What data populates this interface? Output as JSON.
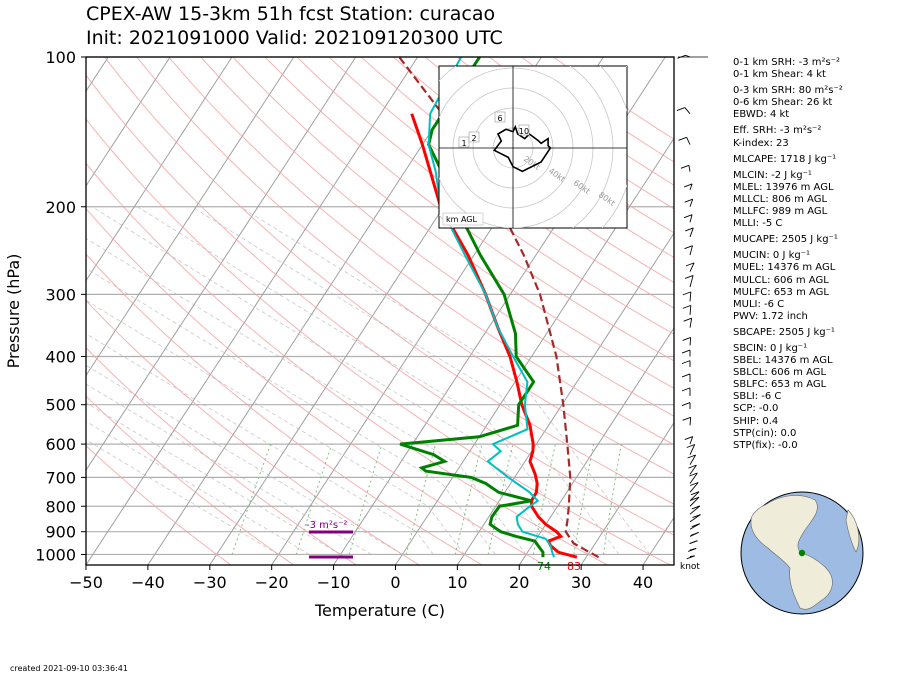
{
  "header": {
    "title_line1": "CPEX-AW 15-3km  51h fcst  Station: curacao",
    "title_line2": "Init: 2021091000  Valid: 202109120300 UTC"
  },
  "footer": {
    "created": "created 2021-09-10 03:36:41"
  },
  "colors": {
    "temperature": "#ff0000",
    "dewpoint": "#008000",
    "wetbulb": "#00bfbf",
    "parcel": "#a52a2a",
    "srh_marker": "#800080",
    "dry_adiabat": "#f4a0a0",
    "isotherm": "#a0a0a0",
    "mixing_ratio": "#80c080"
  },
  "stats": [
    {
      "label": "0-1 km SRH: -3 m²s⁻²"
    },
    {
      "label": "0-1 km Shear: 4 kt"
    },
    {
      "label": "0-3 km SRH: 80 m²s⁻²"
    },
    {
      "label": "0-6 km Shear: 26 kt"
    },
    {
      "label": "EBWD: 4 kt"
    },
    {
      "label": "Eff. SRH: -3 m²s⁻²"
    },
    {
      "label": "K-index: 23"
    },
    {
      "label": "MLCAPE: 1718 J kg⁻¹"
    },
    {
      "label": "MLCIN: -2 J kg⁻¹"
    },
    {
      "label": "MLEL: 13976 m AGL"
    },
    {
      "label": "MLLCL: 806 m AGL"
    },
    {
      "label": "MLLFC: 989 m AGL"
    },
    {
      "label": "MLLI: -5 C"
    },
    {
      "label": "MUCAPE: 2505 J kg⁻¹"
    },
    {
      "label": "MUCIN: 0 J kg⁻¹"
    },
    {
      "label": "MUEL: 14376 m AGL"
    },
    {
      "label": "MULCL: 606 m AGL"
    },
    {
      "label": "MULFC: 653 m AGL"
    },
    {
      "label": "MULI: -6 C"
    },
    {
      "label": "PWV: 1.72 inch"
    },
    {
      "label": "SBCAPE: 2505 J kg⁻¹"
    },
    {
      "label": "SBCIN: 0 J kg⁻¹"
    },
    {
      "label": "SBEL: 14376 m AGL"
    },
    {
      "label": "SBLCL: 606 m AGL"
    },
    {
      "label": "SBLFC: 653 m AGL"
    },
    {
      "label": "SBLI: -6 C"
    },
    {
      "label": "SCP: -0.0"
    },
    {
      "label": "SHIP: 0.4"
    },
    {
      "label": "STP(cin): 0.0"
    },
    {
      "label": "STP(fix): -0.0"
    }
  ],
  "chart_data": {
    "type": "line",
    "xlabel": "Temperature (C)",
    "ylabel": "Pressure (hPa)",
    "xlim": [
      -50,
      45
    ],
    "ylim": [
      1050,
      100
    ],
    "y_scale": "log",
    "x_ticks": [
      -50,
      -40,
      -30,
      -20,
      -10,
      0,
      10,
      20,
      30,
      40
    ],
    "y_ticks": [
      100,
      200,
      300,
      400,
      500,
      600,
      700,
      800,
      900,
      1000
    ],
    "surface_temperature_label": "83",
    "surface_dewpoint_label": "74",
    "srh_annotation": "-3 m²s⁻²",
    "wind_units_label": "knot",
    "series": [
      {
        "key": "temperature",
        "points": [
          [
            1013,
            28.5
          ],
          [
            990,
            25
          ],
          [
            960,
            23
          ],
          [
            940,
            22.2
          ],
          [
            920,
            23.7
          ],
          [
            900,
            22.5
          ],
          [
            870,
            20
          ],
          [
            840,
            18
          ],
          [
            800,
            15.8
          ],
          [
            780,
            15.2
          ],
          [
            750,
            15.1
          ],
          [
            720,
            14.3
          ],
          [
            690,
            13
          ],
          [
            650,
            10.8
          ],
          [
            620,
            10.2
          ],
          [
            600,
            9.5
          ],
          [
            550,
            7
          ],
          [
            500,
            3.5
          ],
          [
            450,
            0.3
          ],
          [
            400,
            -3.5
          ],
          [
            350,
            -8.5
          ],
          [
            300,
            -14
          ],
          [
            250,
            -21
          ],
          [
            200,
            -30.5
          ],
          [
            150,
            -40
          ],
          [
            130,
            -45
          ]
        ]
      },
      {
        "key": "dewpoint",
        "points": [
          [
            1013,
            23
          ],
          [
            990,
            22.5
          ],
          [
            960,
            21
          ],
          [
            940,
            20
          ],
          [
            920,
            16.5
          ],
          [
            900,
            13.5
          ],
          [
            870,
            11
          ],
          [
            840,
            10.5
          ],
          [
            800,
            10.6
          ],
          [
            780,
            15.2
          ],
          [
            750,
            9
          ],
          [
            720,
            6
          ],
          [
            700,
            3
          ],
          [
            680,
            -5
          ],
          [
            670,
            -6
          ],
          [
            650,
            -3
          ],
          [
            630,
            -5.5
          ],
          [
            600,
            -12
          ],
          [
            580,
            0
          ],
          [
            550,
            5
          ],
          [
            500,
            3
          ],
          [
            450,
            3
          ],
          [
            400,
            -2.5
          ],
          [
            360,
            -5
          ],
          [
            300,
            -11
          ],
          [
            250,
            -19
          ],
          [
            200,
            -28
          ],
          [
            170,
            -34
          ],
          [
            150,
            -39
          ],
          [
            140,
            -40
          ],
          [
            130,
            -40
          ],
          [
            100,
            -40
          ]
        ]
      },
      {
        "key": "wetbulb",
        "points": [
          [
            1013,
            24.8
          ],
          [
            990,
            24
          ],
          [
            960,
            23
          ],
          [
            930,
            21.5
          ],
          [
            900,
            17
          ],
          [
            870,
            15.5
          ],
          [
            840,
            14.5
          ],
          [
            800,
            15.5
          ],
          [
            780,
            16.2
          ],
          [
            750,
            14
          ],
          [
            700,
            9
          ],
          [
            670,
            6
          ],
          [
            650,
            4
          ],
          [
            620,
            5
          ],
          [
            600,
            3
          ],
          [
            560,
            7
          ],
          [
            500,
            4
          ],
          [
            450,
            2
          ],
          [
            400,
            -3
          ],
          [
            350,
            -8.5
          ],
          [
            300,
            -14
          ],
          [
            250,
            -21.5
          ],
          [
            200,
            -30.5
          ],
          [
            170,
            -35
          ],
          [
            150,
            -39
          ],
          [
            130,
            -42
          ],
          [
            100,
            -43
          ]
        ]
      },
      {
        "key": "parcel",
        "points": [
          [
            1013,
            32
          ],
          [
            950,
            26.5
          ],
          [
            900,
            24
          ],
          [
            850,
            23
          ],
          [
            800,
            21.8
          ],
          [
            700,
            19
          ],
          [
            600,
            15
          ],
          [
            500,
            10.2
          ],
          [
            400,
            4
          ],
          [
            300,
            -5.2
          ],
          [
            250,
            -12
          ],
          [
            200,
            -21
          ],
          [
            150,
            -33
          ],
          [
            100,
            -53
          ]
        ]
      }
    ],
    "hodograph": {
      "title": "km AGL",
      "ring_labels": [
        "20kt",
        "40kt",
        "60kt",
        "80kt"
      ],
      "height_labels": [
        "1",
        "2",
        "6",
        "10"
      ],
      "trace_kt": [
        [
          -3,
          -1
        ],
        [
          -4,
          -0.5
        ],
        [
          -2.5,
          1.5
        ],
        [
          -3.2,
          3
        ],
        [
          -1.5,
          4
        ],
        [
          0,
          3.5
        ],
        [
          0.5,
          4.5
        ],
        [
          1,
          3
        ],
        [
          2.5,
          2
        ],
        [
          3.5,
          3
        ],
        [
          5.5,
          1.5
        ],
        [
          6,
          1
        ],
        [
          7.5,
          2
        ],
        [
          7.5,
          0.5
        ],
        [
          8,
          0
        ],
        [
          6,
          -3
        ],
        [
          2,
          -5
        ],
        [
          0,
          -4
        ],
        [
          -1,
          -2
        ],
        [
          -3,
          -1
        ]
      ]
    }
  }
}
